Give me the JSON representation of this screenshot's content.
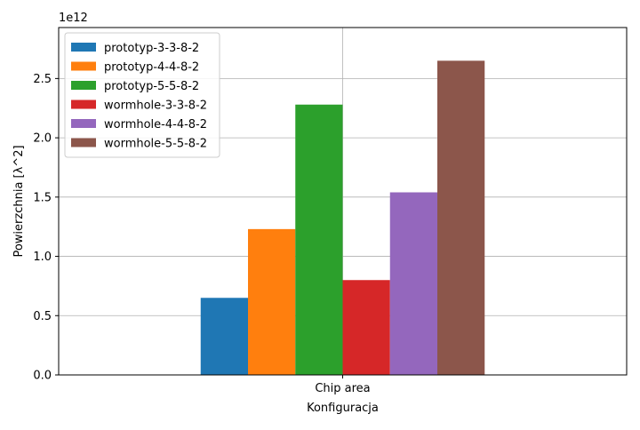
{
  "chart_data": {
    "type": "bar",
    "categories": [
      "Chip area"
    ],
    "series": [
      {
        "name": "prototyp-3-3-8-2",
        "values": [
          0.65
        ],
        "color": "#1f77b4"
      },
      {
        "name": "prototyp-4-4-8-2",
        "values": [
          1.23
        ],
        "color": "#ff7f0e"
      },
      {
        "name": "prototyp-5-5-8-2",
        "values": [
          2.28
        ],
        "color": "#2ca02c"
      },
      {
        "name": "wormhole-3-3-8-2",
        "values": [
          0.8
        ],
        "color": "#d62728"
      },
      {
        "name": "wormhole-4-4-8-2",
        "values": [
          1.54
        ],
        "color": "#9467bd"
      },
      {
        "name": "wormhole-5-5-8-2",
        "values": [
          2.65
        ],
        "color": "#8c564b"
      }
    ],
    "xlabel": "Konfiguracja",
    "ylabel": "Powierzchnia [λ^2]",
    "y_scale_label": "1e12",
    "ylim": [
      0,
      2.93
    ],
    "yticks": [
      {
        "value": 0.0,
        "label": "0.0"
      },
      {
        "value": 0.5,
        "label": "0.5"
      },
      {
        "value": 1.0,
        "label": "1.0"
      },
      {
        "value": 1.5,
        "label": "1.5"
      },
      {
        "value": 2.0,
        "label": "2.0"
      },
      {
        "value": 2.5,
        "label": "2.5"
      }
    ],
    "grid": true,
    "legend_position": "top-left"
  }
}
